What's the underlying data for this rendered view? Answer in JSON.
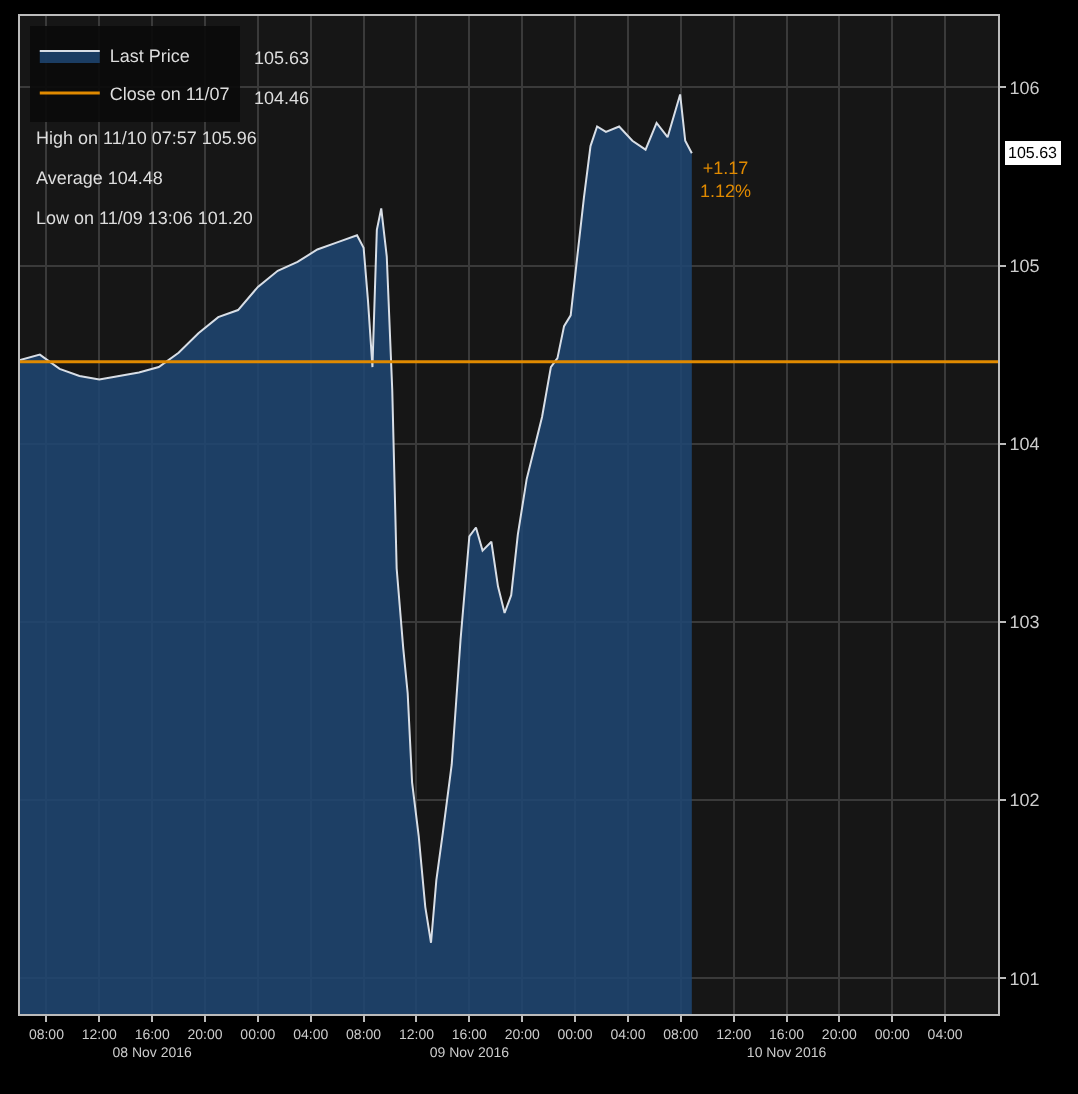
{
  "chart_data": {
    "type": "area",
    "x": [
      "2016-11-08T06:00",
      "2016-11-08T07:30",
      "2016-11-08T09:00",
      "2016-11-08T10:30",
      "2016-11-08T12:00",
      "2016-11-08T13:30",
      "2016-11-08T15:00",
      "2016-11-08T16:30",
      "2016-11-08T18:00",
      "2016-11-08T19:30",
      "2016-11-08T21:00",
      "2016-11-08T22:30",
      "2016-11-09T00:00",
      "2016-11-09T01:30",
      "2016-11-09T03:00",
      "2016-11-09T04:30",
      "2016-11-09T06:00",
      "2016-11-09T07:30",
      "2016-11-09T08:00",
      "2016-11-09T08:20",
      "2016-11-09T08:40",
      "2016-11-09T09:00",
      "2016-11-09T09:20",
      "2016-11-09T09:45",
      "2016-11-09T10:10",
      "2016-11-09T10:30",
      "2016-11-09T11:00",
      "2016-11-09T11:20",
      "2016-11-09T11:40",
      "2016-11-09T12:10",
      "2016-11-09T12:40",
      "2016-11-09T13:06",
      "2016-11-09T13:30",
      "2016-11-09T14:00",
      "2016-11-09T14:40",
      "2016-11-09T15:20",
      "2016-11-09T16:00",
      "2016-11-09T16:30",
      "2016-11-09T17:00",
      "2016-11-09T17:40",
      "2016-11-09T18:10",
      "2016-11-09T18:40",
      "2016-11-09T19:10",
      "2016-11-09T19:40",
      "2016-11-09T20:20",
      "2016-11-09T21:00",
      "2016-11-09T21:30",
      "2016-11-09T22:10",
      "2016-11-09T22:40",
      "2016-11-09T23:10",
      "2016-11-09T23:40",
      "2016-11-10T00:10",
      "2016-11-10T00:40",
      "2016-11-10T01:10",
      "2016-11-10T01:40",
      "2016-11-10T02:20",
      "2016-11-10T03:20",
      "2016-11-10T04:20",
      "2016-11-10T05:20",
      "2016-11-10T06:10",
      "2016-11-10T07:00",
      "2016-11-10T07:57",
      "2016-11-10T08:20",
      "2016-11-10T08:50"
    ],
    "series": [
      {
        "name": "Last Price",
        "color": "#d8dee6",
        "values": [
          104.47,
          104.5,
          104.42,
          104.38,
          104.36,
          104.38,
          104.4,
          104.43,
          104.51,
          104.62,
          104.71,
          104.75,
          104.88,
          104.97,
          105.02,
          105.09,
          105.13,
          105.17,
          105.1,
          104.8,
          104.43,
          105.2,
          105.32,
          105.05,
          104.3,
          103.3,
          102.85,
          102.6,
          102.1,
          101.8,
          101.4,
          101.2,
          101.55,
          101.82,
          102.2,
          102.9,
          103.48,
          103.53,
          103.4,
          103.45,
          103.2,
          103.05,
          103.15,
          103.49,
          103.8,
          104.0,
          104.15,
          104.43,
          104.48,
          104.66,
          104.72,
          105.05,
          105.38,
          105.67,
          105.78,
          105.75,
          105.78,
          105.7,
          105.65,
          105.8,
          105.72,
          105.96,
          105.7,
          105.63
        ]
      }
    ],
    "xlim": [
      "2016-11-08T06:00",
      "2016-11-11T08:00"
    ],
    "xticks": [
      {
        "value": "2016-11-08T08:00",
        "label": "08:00"
      },
      {
        "value": "2016-11-08T12:00",
        "label": "12:00"
      },
      {
        "value": "2016-11-08T16:00",
        "label": "16:00\n08 Nov 2016"
      },
      {
        "value": "2016-11-08T20:00",
        "label": "20:00"
      },
      {
        "value": "2016-11-09T00:00",
        "label": "00:00"
      },
      {
        "value": "2016-11-09T04:00",
        "label": "04:00"
      },
      {
        "value": "2016-11-09T08:00",
        "label": "08:00"
      },
      {
        "value": "2016-11-09T12:00",
        "label": "12:00"
      },
      {
        "value": "2016-11-09T16:00",
        "label": "16:00\n09 Nov 2016"
      },
      {
        "value": "2016-11-09T20:00",
        "label": "20:00"
      },
      {
        "value": "2016-11-10T00:00",
        "label": "00:00"
      },
      {
        "value": "2016-11-10T04:00",
        "label": "04:00"
      },
      {
        "value": "2016-11-10T08:00",
        "label": "08:00"
      },
      {
        "value": "2016-11-10T12:00",
        "label": "12:00"
      },
      {
        "value": "2016-11-10T16:00",
        "label": "16:00\n10 Nov 2016"
      },
      {
        "value": "2016-11-10T20:00",
        "label": "20:00"
      },
      {
        "value": "2016-11-11T00:00",
        "label": "00:00"
      },
      {
        "value": "2016-11-11T04:00",
        "label": "04:00"
      }
    ],
    "ylim": [
      100.8,
      106.4
    ],
    "yticks": [
      101,
      102,
      103,
      104,
      105,
      106
    ],
    "grid": true,
    "legend": "top left",
    "ref_lines": [
      {
        "axis": "y",
        "value": 104.46,
        "label": "Close on 11/07",
        "color": "#e08a00"
      }
    ],
    "annotations": [
      "105.63",
      "104.46",
      "High on 11/10 07:57 105.96",
      "Average 104.48",
      "Low on 11/09 13:06 101.20",
      "105.63",
      {
        "text": "+1.17\n1.12%",
        "x": "2016-11-10T08:50",
        "y": 105.63
      }
    ]
  }
}
